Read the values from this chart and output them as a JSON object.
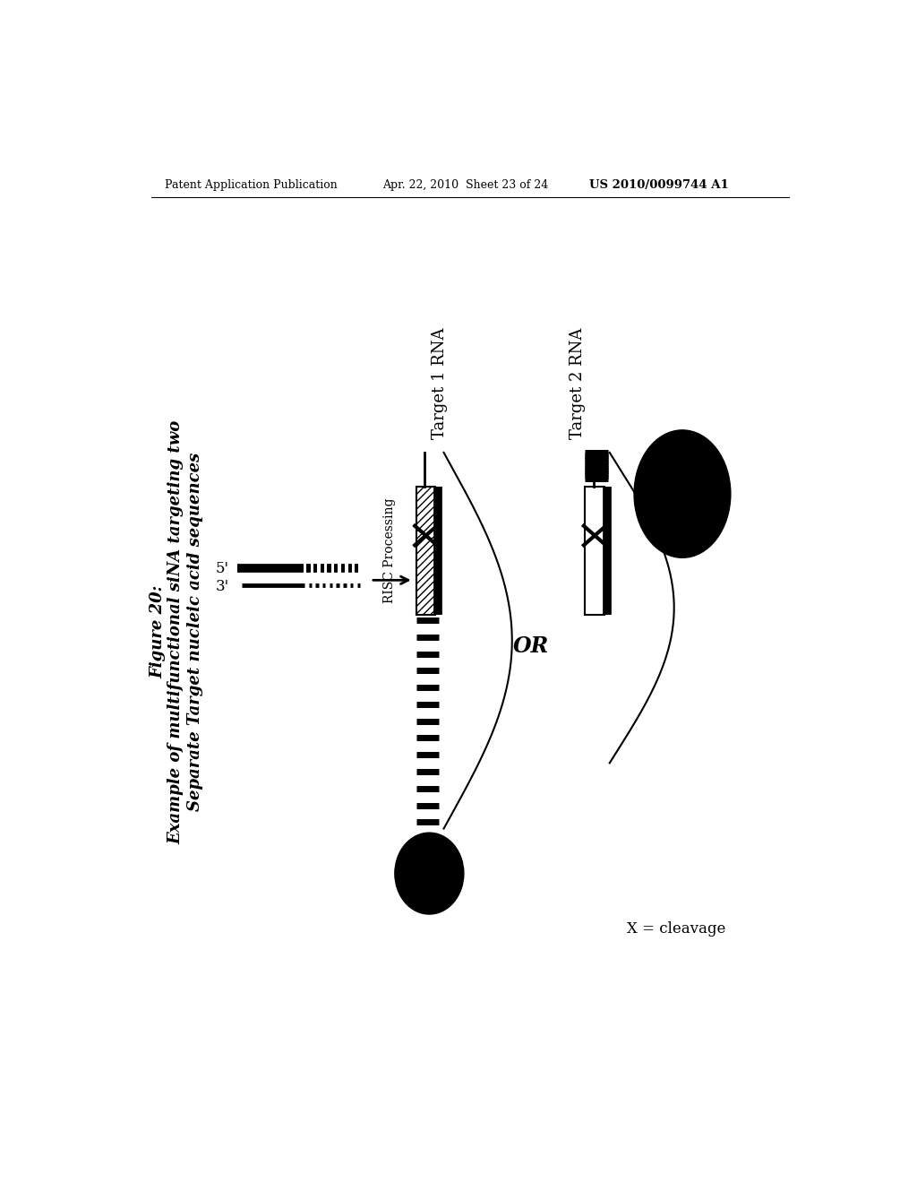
{
  "header_left": "Patent Application Publication",
  "header_mid": "Apr. 22, 2010  Sheet 23 of 24",
  "header_right": "US 2010/0099744 A1",
  "figure_label": "Figure 20:",
  "figure_title1": "Example of multifunctional siNA targeting two",
  "figure_title2": "Separate Target nucleic acid sequences",
  "label_5prime": "5'",
  "label_3prime": "3'",
  "risc_label": "RISC Processing",
  "target1_label": "Target 1 RNA",
  "target2_label": "Target 2 RNA",
  "or_label": "OR",
  "cleavage_label": "X = cleavage",
  "bg_color": "#ffffff"
}
